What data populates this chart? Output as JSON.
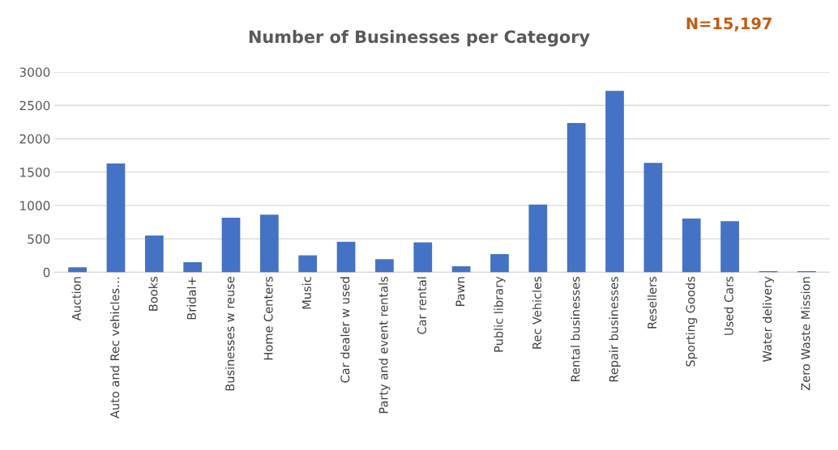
{
  "chart_data": {
    "type": "bar",
    "title": "Number of Businesses per Category",
    "categories": [
      "Auction",
      "Auto and Rec vehicles…",
      "Books",
      "Bridal+",
      "Businesses w reuse",
      "Home Centers",
      "Music",
      "Car dealer w used",
      "Party and event rentals",
      "Car rental",
      "Pawn",
      "Public library",
      "Rec Vehicles",
      "Rental businesses",
      "Repair businesses",
      "Resellers",
      "Sporting Goods",
      "Used Cars",
      "Water delivery",
      "Zero Waste Mission"
    ],
    "values": [
      73,
      1630,
      549,
      150,
      817,
      862,
      252,
      455,
      195,
      447,
      88,
      272,
      1015,
      2235,
      2719,
      1637,
      806,
      765,
      17,
      17
    ],
    "color": "#4472c4",
    "ylim": [
      0,
      3000
    ],
    "yticks": [
      0,
      500,
      1000,
      1500,
      2000,
      2500,
      3000
    ],
    "grid": "y",
    "annotations": [
      "N=15,197"
    ]
  }
}
